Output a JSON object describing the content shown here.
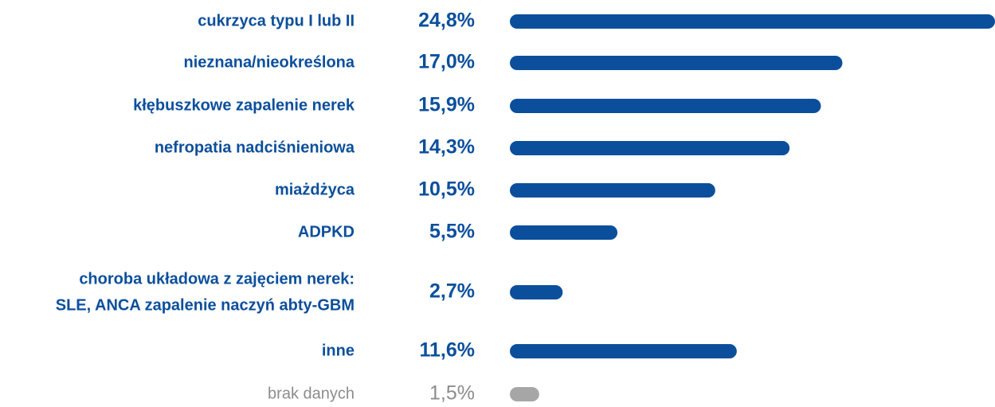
{
  "chart_data": {
    "type": "bar",
    "orientation": "horizontal",
    "categories": [
      "cukrzyca typu I lub II",
      "nieznana/nieokreślona",
      "kłębuszkowe zapalenie nerek",
      "nefropatia nadciśnieniowa",
      "miażdżyca",
      "ADPKD",
      [
        "choroba układowa z zajęciem nerek:",
        "SLE, ANCA zapalenie naczyń abty-GBM"
      ],
      "inne",
      "brak danych"
    ],
    "values": [
      24.8,
      17.0,
      15.9,
      14.3,
      10.5,
      5.5,
      2.7,
      11.6,
      1.5
    ],
    "value_labels": [
      "24,8%",
      "17,0%",
      "15,9%",
      "14,3%",
      "10,5%",
      "5,5%",
      "2,7%",
      "11,6%",
      "1,5%"
    ],
    "colors": [
      "#0b4f9c",
      "#0b4f9c",
      "#0b4f9c",
      "#0b4f9c",
      "#0b4f9c",
      "#0b4f9c",
      "#0b4f9c",
      "#0b4f9c",
      "#a6a6a6"
    ]
  }
}
